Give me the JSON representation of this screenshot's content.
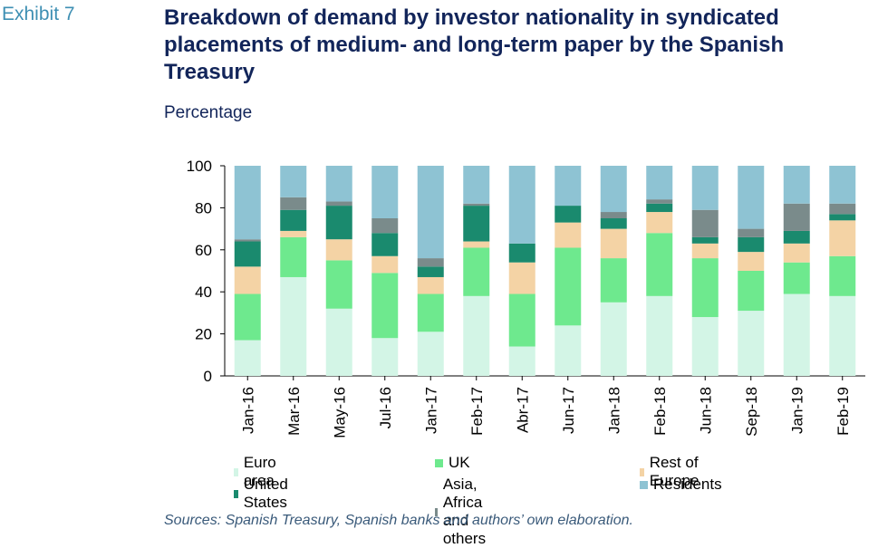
{
  "exhibit_label": "Exhibit 7",
  "title": "Breakdown of demand by investor nationality in syndicated placements of medium- and long-term paper by the Spanish Treasury",
  "subtitle": "Percentage",
  "source": "Sources: Spanish Treasury, Spanish banks and authors’ own elaboration.",
  "chart_data": {
    "type": "bar",
    "stacked": true,
    "categories": [
      "Jan-16",
      "Mar-16",
      "May-16",
      "Jul-16",
      "Jan-17",
      "Feb-17",
      "Abr-17",
      "Jun-17",
      "Jan-18",
      "Feb-18",
      "Jun-18",
      "Sep-18",
      "Jan-19",
      "Feb-19"
    ],
    "ylim": [
      0,
      100
    ],
    "yticks": [
      0,
      20,
      40,
      60,
      80,
      100
    ],
    "grid": false,
    "legend_position": "bottom",
    "series": [
      {
        "name": "Euro area",
        "color": "#d3f5e6",
        "values": [
          17,
          47,
          32,
          18,
          21,
          38,
          14,
          24,
          35,
          38,
          28,
          31,
          39,
          38
        ]
      },
      {
        "name": "UK",
        "color": "#6ee98e",
        "values": [
          22,
          19,
          23,
          31,
          18,
          23,
          25,
          37,
          21,
          30,
          28,
          19,
          15,
          19
        ]
      },
      {
        "name": "Rest of Europe",
        "color": "#f4d3a5",
        "values": [
          13,
          3,
          10,
          8,
          8,
          3,
          15,
          12,
          14,
          10,
          7,
          9,
          9,
          17
        ]
      },
      {
        "name": "United States",
        "color": "#1a8a6e",
        "values": [
          12,
          10,
          16,
          11,
          5,
          17,
          9,
          8,
          5,
          4,
          3,
          7,
          6,
          3
        ]
      },
      {
        "name": "Asia, Africa and others",
        "color": "#7a8b8b",
        "values": [
          1,
          6,
          2,
          7,
          4,
          1,
          0,
          0,
          3,
          2,
          13,
          4,
          13,
          5
        ]
      },
      {
        "name": "Residents",
        "color": "#8ec3d3",
        "values": [
          35,
          15,
          17,
          25,
          44,
          18,
          37,
          19,
          22,
          16,
          21,
          30,
          18,
          18
        ]
      }
    ]
  }
}
